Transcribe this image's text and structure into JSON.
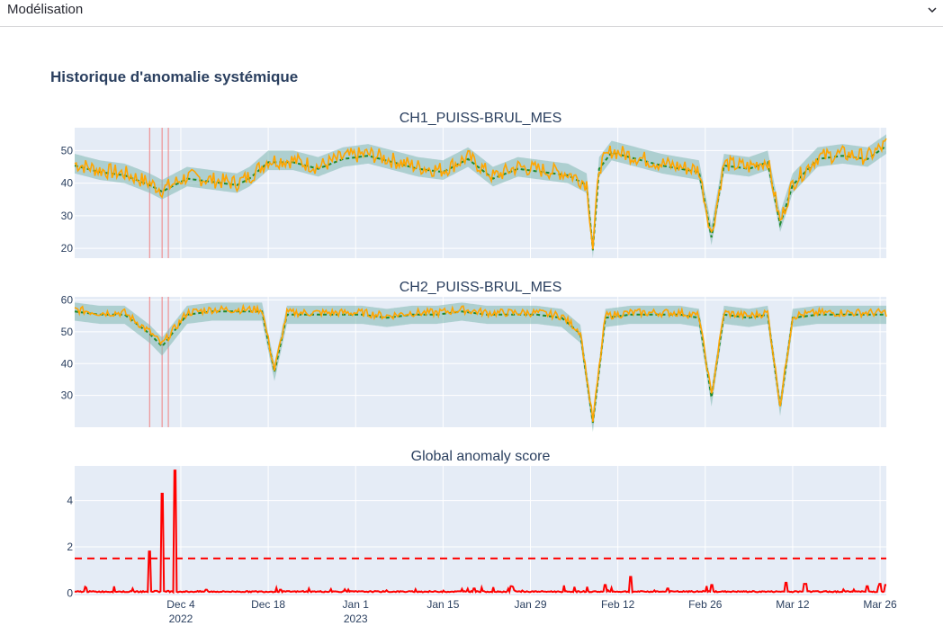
{
  "expander": {
    "title": "Modélisation",
    "icon": "chevron-down-icon"
  },
  "section": {
    "title": "Historique d'anomalie systémique"
  },
  "colors": {
    "plot_bg": "#e5ecf6",
    "measured": "#ffa500",
    "predicted": "#1f8a2e",
    "band": "#7fb8b0",
    "score": "#ff0000",
    "threshold": "#ff0000",
    "anomaly_vline": "#f08080"
  },
  "chart_data": [
    {
      "type": "line",
      "title": "CH1_PUISS-BRUL_MES",
      "ylim": [
        17,
        57
      ],
      "yticks": [
        20,
        30,
        40,
        50
      ],
      "xlim": [
        "2022-11-17",
        "2023-03-27"
      ],
      "anomaly_markers": [
        "2022-11-29",
        "2022-12-01",
        "2022-12-02"
      ],
      "series": [
        {
          "x": [
            "2022-11-17",
            "2022-11-21",
            "2022-11-25",
            "2022-11-29",
            "2022-12-01",
            "2022-12-05",
            "2022-12-09",
            "2022-12-13",
            "2022-12-15",
            "2022-12-18",
            "2022-12-22",
            "2022-12-26",
            "2022-12-30",
            "2023-01-03",
            "2023-01-07",
            "2023-01-11",
            "2023-01-15",
            "2023-01-19",
            "2023-01-23",
            "2023-01-27",
            "2023-01-31",
            "2023-02-04",
            "2023-02-07",
            "2023-02-08",
            "2023-02-09",
            "2023-02-11",
            "2023-02-15",
            "2023-02-19",
            "2023-02-22",
            "2023-02-25",
            "2023-02-27",
            "2023-03-01",
            "2023-03-05",
            "2023-03-08",
            "2023-03-10",
            "2023-03-12",
            "2023-03-16",
            "2023-03-20",
            "2023-03-24",
            "2023-03-27"
          ],
          "values": [
            46,
            44,
            43,
            40,
            38,
            42,
            41,
            40,
            42,
            47,
            47,
            45,
            48,
            49,
            47,
            45,
            44,
            48,
            42,
            45,
            44,
            43,
            40,
            20,
            45,
            50,
            48,
            46,
            45,
            44,
            24,
            46,
            45,
            47,
            28,
            40,
            48,
            49,
            48,
            52
          ]
        }
      ]
    },
    {
      "type": "line",
      "title": "CH2_PUISS-BRUL_MES",
      "ylim": [
        20,
        61
      ],
      "yticks": [
        30,
        40,
        50,
        60
      ],
      "xlim": [
        "2022-11-17",
        "2023-03-27"
      ],
      "anomaly_markers": [
        "2022-11-29",
        "2022-12-01",
        "2022-12-02"
      ],
      "series": [
        {
          "x": [
            "2022-11-17",
            "2022-11-21",
            "2022-11-25",
            "2022-11-29",
            "2022-12-01",
            "2022-12-05",
            "2022-12-09",
            "2022-12-13",
            "2022-12-17",
            "2022-12-19",
            "2022-12-21",
            "2022-12-25",
            "2022-12-29",
            "2023-01-02",
            "2023-01-06",
            "2023-01-10",
            "2023-01-14",
            "2023-01-18",
            "2023-01-22",
            "2023-01-26",
            "2023-01-30",
            "2023-02-03",
            "2023-02-06",
            "2023-02-08",
            "2023-02-10",
            "2023-02-14",
            "2023-02-18",
            "2023-02-22",
            "2023-02-25",
            "2023-02-27",
            "2023-03-01",
            "2023-03-05",
            "2023-03-08",
            "2023-03-10",
            "2023-03-12",
            "2023-03-16",
            "2023-03-20",
            "2023-03-24",
            "2023-03-27"
          ],
          "values": [
            57,
            56,
            56,
            50,
            46,
            56,
            57,
            57,
            57,
            38,
            56,
            56,
            56,
            56,
            55,
            56,
            56,
            57,
            56,
            56,
            56,
            55,
            50,
            22,
            55,
            56,
            56,
            56,
            55,
            30,
            56,
            55,
            56,
            27,
            55,
            56,
            56,
            56,
            56
          ]
        }
      ]
    },
    {
      "type": "line",
      "title": "Global anomaly score",
      "ylim": [
        -0.1,
        5.5
      ],
      "yticks": [
        0,
        2,
        4
      ],
      "threshold": 1.5,
      "xlim": [
        "2022-11-17",
        "2023-03-27"
      ],
      "xticks": [
        {
          "date": "2022-12-04",
          "label": "Dec 4",
          "sub": "2022"
        },
        {
          "date": "2022-12-18",
          "label": "Dec 18",
          "sub": ""
        },
        {
          "date": "2023-01-01",
          "label": "Jan 1",
          "sub": "2023"
        },
        {
          "date": "2023-01-15",
          "label": "Jan 15",
          "sub": ""
        },
        {
          "date": "2023-01-29",
          "label": "Jan 29",
          "sub": ""
        },
        {
          "date": "2023-02-12",
          "label": "Feb 12",
          "sub": ""
        },
        {
          "date": "2023-02-26",
          "label": "Feb 26",
          "sub": ""
        },
        {
          "date": "2023-03-12",
          "label": "Mar 12",
          "sub": ""
        },
        {
          "date": "2023-03-26",
          "label": "Mar 26",
          "sub": ""
        }
      ],
      "series": [
        {
          "x": [
            "2022-11-17",
            "2022-11-28",
            "2022-11-29",
            "2022-11-30",
            "2022-12-01",
            "2022-12-02",
            "2022-12-03",
            "2022-12-08",
            "2022-12-20",
            "2023-01-20",
            "2023-01-26",
            "2023-02-10",
            "2023-02-14",
            "2023-02-20",
            "2023-02-27",
            "2023-03-11",
            "2023-03-14",
            "2023-03-24",
            "2023-03-26",
            "2023-03-27"
          ],
          "values": [
            0.05,
            0.05,
            1.8,
            0.1,
            4.3,
            0.1,
            5.3,
            0.15,
            0.15,
            0.2,
            0.3,
            0.35,
            0.7,
            0.2,
            0.35,
            0.45,
            0.4,
            0.3,
            0.4,
            0.35
          ]
        }
      ]
    }
  ]
}
